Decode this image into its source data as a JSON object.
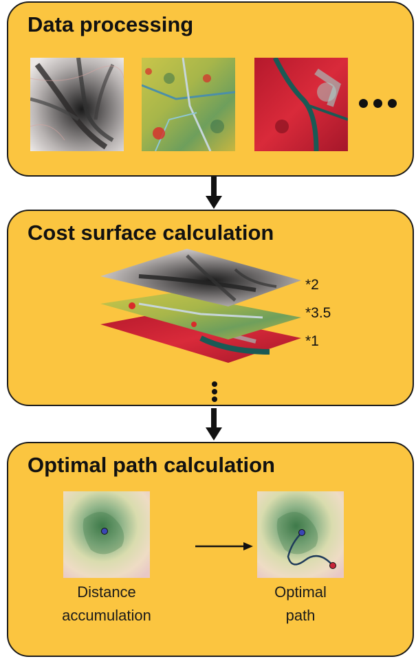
{
  "stages": {
    "data_processing": {
      "title": "Data processing"
    },
    "cost_surface": {
      "title": "Cost surface calculation",
      "weights": [
        "*2",
        "*3.5",
        "*1"
      ]
    },
    "optimal_path": {
      "title": "Optimal path calculation",
      "captions": {
        "distance": [
          "Distance",
          "accumulation"
        ],
        "path": [
          "Optimal",
          "path"
        ]
      }
    }
  },
  "colors": {
    "panel_fill": "#fbc540",
    "panel_border": "#1a1a1a",
    "arrow": "#111111",
    "path_line": "#1f3b5a",
    "start_point": "#3b46b5",
    "end_point": "#c8243a"
  },
  "icons": [
    "ellipsis-icon",
    "down-arrow-icon",
    "right-arrow-icon",
    "vertical-ellipsis-icon"
  ]
}
